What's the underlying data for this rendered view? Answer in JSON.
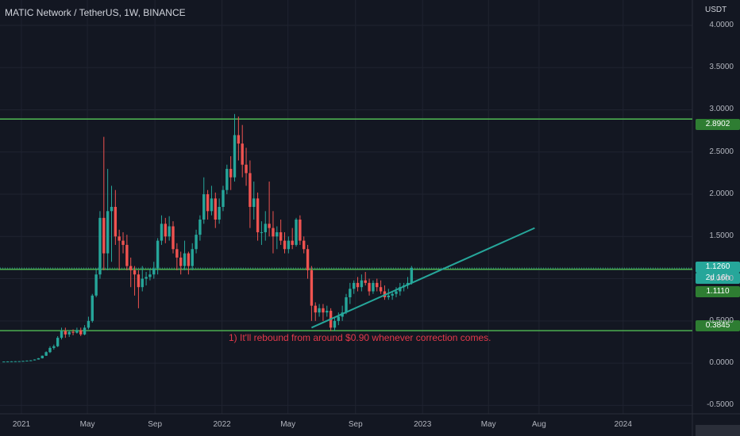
{
  "header": {
    "title": "MATIC Network / TetherUS, 1W, BINANCE",
    "currency": "USDT"
  },
  "annotation": "1) It'll rebound from around $0.90 whenever correction comes.",
  "price_tags": {
    "resistance": "2.8902",
    "current": "1.1260",
    "countdown": "2d 16h",
    "level": "1.1110",
    "support": "0.3845"
  },
  "colors": {
    "background": "#131722",
    "up": "#26a69a",
    "down": "#ef5350",
    "level_line": "#4caf50",
    "trend_line": "#26a69a",
    "annotation": "#e5394b"
  },
  "chart_data": {
    "type": "candlestick",
    "symbol": "MATIC Network / TetherUS",
    "timeframe": "1W",
    "exchange": "BINANCE",
    "y_axis": {
      "unit": "USDT",
      "range": [
        -0.6,
        4.3
      ],
      "ticks": [
        "4.0000",
        "3.5000",
        "3.0000",
        "2.5000",
        "2.0000",
        "1.5000",
        "1.0000",
        "0.5000",
        "0.0000",
        "-0.5000"
      ]
    },
    "x_axis": {
      "range": [
        "2020-11-23",
        "2024-05-06"
      ],
      "ticks": [
        {
          "label": "2021",
          "date": "2021-01-01"
        },
        {
          "label": "May",
          "date": "2021-05-01"
        },
        {
          "label": "Sep",
          "date": "2021-09-01"
        },
        {
          "label": "2022",
          "date": "2022-01-01"
        },
        {
          "label": "May",
          "date": "2022-05-01"
        },
        {
          "label": "Sep",
          "date": "2022-09-01"
        },
        {
          "label": "2023",
          "date": "2023-01-01"
        },
        {
          "label": "May",
          "date": "2023-05-01"
        },
        {
          "label": "Aug",
          "date": "2023-08-01"
        },
        {
          "label": "2024",
          "date": "2024-01-01"
        }
      ]
    },
    "candles_start": "2020-11-30",
    "candle_interval": "1W",
    "candles": [
      [
        0.018,
        0.02,
        0.017,
        0.019
      ],
      [
        0.019,
        0.021,
        0.018,
        0.02
      ],
      [
        0.02,
        0.022,
        0.019,
        0.021
      ],
      [
        0.021,
        0.023,
        0.02,
        0.022
      ],
      [
        0.022,
        0.024,
        0.021,
        0.023
      ],
      [
        0.023,
        0.027,
        0.022,
        0.026
      ],
      [
        0.026,
        0.031,
        0.025,
        0.03
      ],
      [
        0.03,
        0.035,
        0.028,
        0.033
      ],
      [
        0.033,
        0.045,
        0.032,
        0.043
      ],
      [
        0.043,
        0.06,
        0.042,
        0.058
      ],
      [
        0.058,
        0.09,
        0.055,
        0.088
      ],
      [
        0.088,
        0.14,
        0.085,
        0.13
      ],
      [
        0.13,
        0.2,
        0.12,
        0.18
      ],
      [
        0.18,
        0.22,
        0.16,
        0.2
      ],
      [
        0.2,
        0.32,
        0.19,
        0.3
      ],
      [
        0.3,
        0.42,
        0.28,
        0.38
      ],
      [
        0.38,
        0.42,
        0.3,
        0.34
      ],
      [
        0.34,
        0.39,
        0.31,
        0.37
      ],
      [
        0.37,
        0.4,
        0.33,
        0.36
      ],
      [
        0.36,
        0.42,
        0.35,
        0.39
      ],
      [
        0.39,
        0.42,
        0.32,
        0.34
      ],
      [
        0.34,
        0.45,
        0.33,
        0.42
      ],
      [
        0.42,
        0.55,
        0.4,
        0.5
      ],
      [
        0.5,
        0.82,
        0.48,
        0.8
      ],
      [
        0.8,
        1.12,
        0.78,
        1.05
      ],
      [
        1.05,
        1.8,
        1.0,
        1.72
      ],
      [
        1.72,
        2.68,
        1.1,
        1.3
      ],
      [
        1.3,
        2.3,
        1.1,
        1.8
      ],
      [
        1.8,
        2.1,
        1.2,
        1.85
      ],
      [
        1.85,
        2.05,
        1.4,
        1.5
      ],
      [
        1.5,
        1.58,
        1.1,
        1.45
      ],
      [
        1.45,
        1.55,
        1.3,
        1.4
      ],
      [
        1.4,
        1.52,
        1.1,
        1.15
      ],
      [
        1.15,
        1.25,
        0.9,
        1.1
      ],
      [
        1.1,
        1.15,
        0.8,
        1.05
      ],
      [
        1.05,
        1.1,
        0.65,
        0.9
      ],
      [
        0.9,
        1.15,
        0.85,
        1.0
      ],
      [
        1.0,
        1.08,
        0.92,
        1.02
      ],
      [
        1.02,
        1.12,
        0.98,
        1.05
      ],
      [
        1.05,
        1.2,
        1.0,
        1.12
      ],
      [
        1.12,
        1.48,
        1.05,
        1.45
      ],
      [
        1.45,
        1.75,
        1.4,
        1.65
      ],
      [
        1.65,
        1.72,
        1.42,
        1.5
      ],
      [
        1.5,
        1.74,
        1.45,
        1.62
      ],
      [
        1.62,
        1.68,
        1.3,
        1.35
      ],
      [
        1.35,
        1.42,
        1.1,
        1.25
      ],
      [
        1.25,
        1.32,
        1.05,
        1.15
      ],
      [
        1.15,
        1.45,
        1.1,
        1.3
      ],
      [
        1.3,
        1.32,
        1.05,
        1.15
      ],
      [
        1.15,
        1.42,
        1.1,
        1.35
      ],
      [
        1.35,
        1.58,
        1.3,
        1.52
      ],
      [
        1.52,
        1.75,
        1.45,
        1.7
      ],
      [
        1.7,
        2.2,
        1.65,
        2.0
      ],
      [
        2.0,
        2.05,
        1.7,
        1.8
      ],
      [
        1.8,
        2.1,
        1.75,
        1.95
      ],
      [
        1.95,
        2.02,
        1.6,
        1.7
      ],
      [
        1.7,
        1.95,
        1.65,
        1.85
      ],
      [
        1.85,
        2.1,
        1.8,
        2.05
      ],
      [
        2.05,
        2.35,
        2.0,
        2.3
      ],
      [
        2.3,
        2.45,
        2.05,
        2.2
      ],
      [
        2.2,
        2.95,
        2.15,
        2.7
      ],
      [
        2.7,
        2.92,
        2.4,
        2.6
      ],
      [
        2.6,
        2.82,
        2.2,
        2.35
      ],
      [
        2.35,
        2.55,
        2.1,
        2.25
      ],
      [
        2.25,
        2.4,
        1.6,
        1.85
      ],
      [
        1.85,
        2.15,
        1.7,
        1.95
      ],
      [
        1.95,
        2.02,
        1.45,
        1.55
      ],
      [
        1.55,
        1.68,
        1.4,
        1.55
      ],
      [
        1.55,
        1.8,
        1.45,
        1.65
      ],
      [
        1.65,
        2.15,
        1.5,
        1.6
      ],
      [
        1.6,
        1.8,
        1.3,
        1.5
      ],
      [
        1.5,
        1.62,
        1.35,
        1.55
      ],
      [
        1.55,
        1.7,
        1.4,
        1.45
      ],
      [
        1.45,
        1.55,
        1.3,
        1.35
      ],
      [
        1.35,
        1.5,
        1.3,
        1.45
      ],
      [
        1.45,
        1.6,
        1.35,
        1.4
      ],
      [
        1.4,
        1.72,
        1.38,
        1.7
      ],
      [
        1.7,
        1.75,
        1.4,
        1.45
      ],
      [
        1.45,
        1.5,
        1.3,
        1.35
      ],
      [
        1.35,
        1.4,
        1.0,
        1.1
      ],
      [
        1.1,
        1.15,
        0.5,
        0.68
      ],
      [
        0.68,
        0.72,
        0.5,
        0.6
      ],
      [
        0.6,
        0.7,
        0.55,
        0.65
      ],
      [
        0.65,
        0.7,
        0.5,
        0.6
      ],
      [
        0.6,
        0.68,
        0.55,
        0.62
      ],
      [
        0.62,
        0.65,
        0.38,
        0.42
      ],
      [
        0.42,
        0.55,
        0.38,
        0.5
      ],
      [
        0.5,
        0.6,
        0.45,
        0.55
      ],
      [
        0.55,
        0.68,
        0.5,
        0.6
      ],
      [
        0.6,
        0.82,
        0.58,
        0.78
      ],
      [
        0.78,
        0.95,
        0.7,
        0.88
      ],
      [
        0.88,
        0.98,
        0.82,
        0.95
      ],
      [
        0.95,
        1.02,
        0.85,
        0.9
      ],
      [
        0.9,
        1.05,
        0.85,
        0.98
      ],
      [
        0.98,
        1.08,
        0.92,
        0.95
      ],
      [
        0.95,
        1.0,
        0.8,
        0.85
      ],
      [
        0.85,
        0.98,
        0.82,
        0.95
      ],
      [
        0.95,
        1.0,
        0.85,
        0.9
      ],
      [
        0.9,
        0.98,
        0.82,
        0.85
      ],
      [
        0.85,
        0.92,
        0.75,
        0.78
      ],
      [
        0.78,
        0.88,
        0.75,
        0.8
      ],
      [
        0.8,
        0.85,
        0.75,
        0.82
      ],
      [
        0.82,
        0.9,
        0.78,
        0.85
      ],
      [
        0.85,
        0.95,
        0.8,
        0.9
      ],
      [
        0.9,
        0.95,
        0.85,
        0.92
      ],
      [
        0.92,
        1.02,
        0.88,
        0.95
      ],
      [
        0.95,
        1.15,
        0.93,
        1.126
      ]
    ],
    "horizontal_levels": [
      2.8902,
      1.111,
      0.3845
    ],
    "current_price": 1.126,
    "trend_line": {
      "start": [
        "2022-06-13",
        0.42
      ],
      "end": [
        "2023-07-24",
        1.6
      ]
    }
  }
}
